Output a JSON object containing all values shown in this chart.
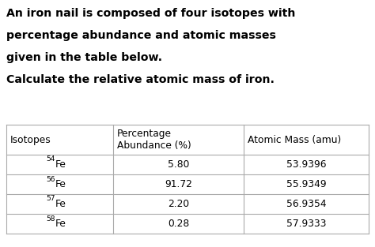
{
  "paragraph_lines": [
    "An iron nail is composed of four isotopes with",
    "percentage abundance and atomic masses",
    "given in the table below.",
    "Calculate the relative atomic mass of iron."
  ],
  "table_headers": [
    "Isotopes",
    "Percentage\nAbundance (%)",
    "Atomic Mass (amu)"
  ],
  "isotopes": [
    {
      "label_super": "54",
      "label_main": "Fe",
      "abundance": "5.80",
      "mass": "53.9396"
    },
    {
      "label_super": "56",
      "label_main": "Fe",
      "abundance": "91.72",
      "mass": "55.9349"
    },
    {
      "label_super": "57",
      "label_main": "Fe",
      "abundance": "2.20",
      "mass": "56.9354"
    },
    {
      "label_super": "58",
      "label_main": "Fe",
      "abundance": "0.28",
      "mass": "57.9333"
    }
  ],
  "bg_color": "#ffffff",
  "text_color": "#000000",
  "table_line_color": "#aaaaaa",
  "font_size_paragraph": 10.2,
  "font_size_table": 8.8,
  "font_size_super": 6.5,
  "fig_width": 4.74,
  "fig_height": 3.13,
  "dpi": 100
}
